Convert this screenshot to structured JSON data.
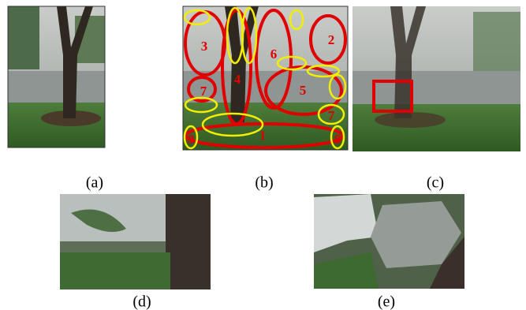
{
  "panels": [
    {
      "label": "(a)"
    },
    {
      "label": "(b)"
    },
    {
      "label": "(c)"
    },
    {
      "label": "(d)"
    },
    {
      "label": "(e)"
    }
  ],
  "region_labels": [
    "3",
    "4",
    "6",
    "2",
    "7",
    "5",
    "7",
    "1",
    "9",
    "8"
  ]
}
